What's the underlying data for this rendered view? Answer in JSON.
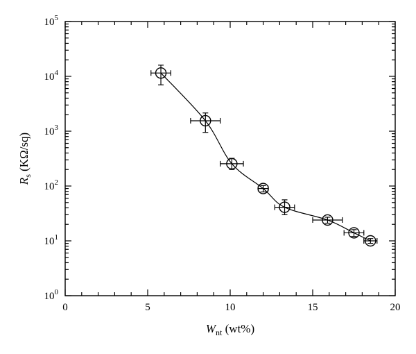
{
  "chart_data": {
    "type": "scatter",
    "title": "",
    "xlabel": {
      "main": "W",
      "sub": "nt",
      "unit": " (wt%)"
    },
    "ylabel": {
      "main": "R",
      "sub": "s",
      "unit": " (KΩ/sq)"
    },
    "xlim": [
      0,
      20
    ],
    "ylim": [
      1,
      100000
    ],
    "yscale": "log",
    "x_ticks": [
      0,
      5,
      10,
      15,
      20
    ],
    "x_tick_labels": [
      "0",
      "5",
      "10",
      "15",
      "20"
    ],
    "y_ticks": [
      1,
      10,
      100,
      1000,
      10000,
      100000
    ],
    "y_tick_labels": [
      {
        "base": "10",
        "exp": "0"
      },
      {
        "base": "10",
        "exp": "1"
      },
      {
        "base": "10",
        "exp": "2"
      },
      {
        "base": "10",
        "exp": "3"
      },
      {
        "base": "10",
        "exp": "4"
      },
      {
        "base": "10",
        "exp": "5"
      }
    ],
    "grid": false,
    "legend": "none",
    "marker": "open-circle",
    "connected_by_smooth_line": true,
    "series": [
      {
        "x": [
          5.8,
          8.5,
          10.1,
          12.0,
          13.3,
          15.9,
          17.5,
          18.5
        ],
        "y": [
          11500,
          1550,
          255,
          90,
          41,
          24,
          14,
          10
        ],
        "x_err": [
          0.6,
          0.9,
          0.7,
          0.3,
          0.6,
          0.9,
          0.6,
          0.4
        ],
        "y_err_low": [
          7000,
          950,
          200,
          78,
          30,
          21,
          12,
          9
        ],
        "y_err_high": [
          16000,
          2150,
          320,
          102,
          56,
          27,
          16,
          11
        ]
      }
    ]
  }
}
